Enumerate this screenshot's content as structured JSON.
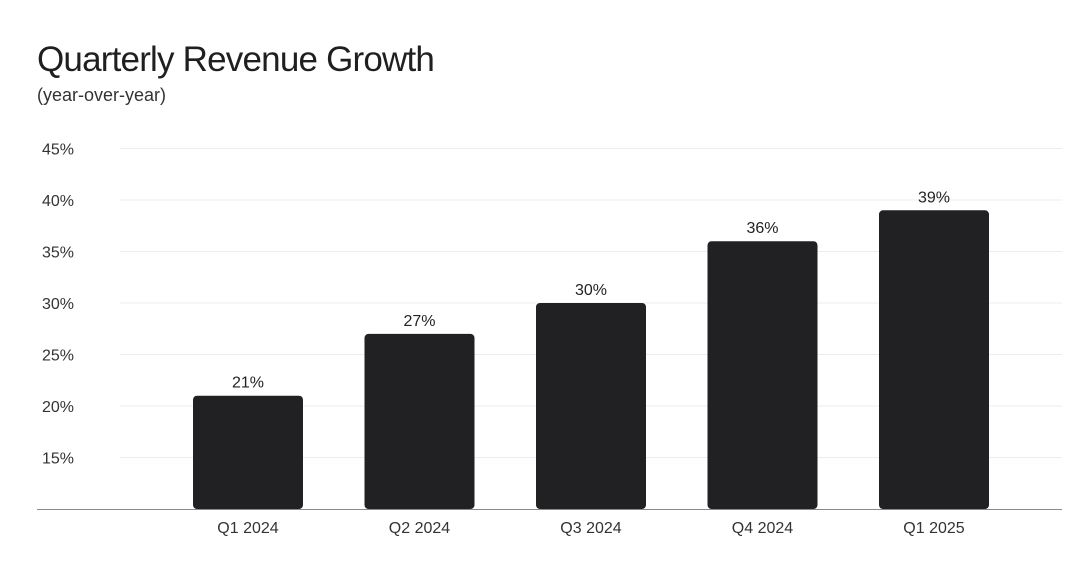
{
  "colors": {
    "bar": "#212124",
    "grid": "#ececec",
    "axis": "#8a8a8a",
    "text": "#333333"
  },
  "chart_data": {
    "type": "bar",
    "title": "Quarterly Revenue Growth",
    "subtitle": "(year-over-year)",
    "xlabel": "",
    "ylabel": "",
    "categories": [
      "Q1 2024",
      "Q2 2024",
      "Q3 2024",
      "Q4 2024",
      "Q1 2025"
    ],
    "values": [
      21,
      27,
      30,
      36,
      39
    ],
    "data_labels": [
      "21%",
      "27%",
      "30%",
      "36%",
      "39%"
    ],
    "ylim": [
      10,
      45
    ],
    "yticks": [
      15,
      20,
      25,
      30,
      35,
      40,
      45
    ],
    "ytick_labels": [
      "15%",
      "20%",
      "25%",
      "30%",
      "35%",
      "40%",
      "45%"
    ],
    "grid": true,
    "legend": "none"
  }
}
